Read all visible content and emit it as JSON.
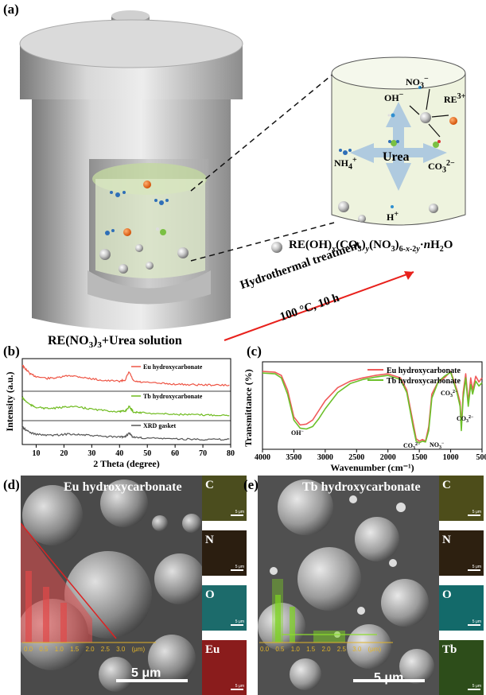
{
  "panel_labels": {
    "a": "(a)",
    "b": "(b)",
    "c": "(c)",
    "d": "(d)",
    "e": "(e)"
  },
  "panel_a": {
    "left_caption_parts": [
      "RE(NO",
      "3",
      ")",
      "3",
      "+Urea solution"
    ],
    "arrow_label_1": "Hydrothermal treatment",
    "arrow_label_2": "100 °C, 10 h",
    "product_formula": "RE(OH)x(CO3)y(NO3)6-x-2y·nH2O",
    "center_label": "Urea",
    "ions": {
      "no3": "NO3−",
      "oh": "OH−",
      "re": "RE3+",
      "nh4": "NH4+",
      "co3": "CO32−",
      "h": "H+"
    },
    "colors": {
      "arrow": "#e8211c",
      "re_ion": "#e86a10",
      "cylinder_fill": "#eef3de"
    }
  },
  "chart_data": [
    {
      "type": "line",
      "panel": "b",
      "xlabel": "2 Theta (degree)",
      "ylabel": "Intensity (a.u.)",
      "xlim": [
        5,
        80
      ],
      "xticks": [
        "10",
        "20",
        "30",
        "40",
        "50",
        "60",
        "70",
        "80"
      ],
      "series": [
        {
          "name": "Eu hydroxycarbonate",
          "color": "#ee5545",
          "x": [
            5,
            6,
            8,
            10,
            14,
            18,
            22,
            26,
            30,
            35,
            40,
            42,
            43.5,
            45,
            48,
            55,
            60,
            65,
            70,
            75,
            80
          ],
          "y": [
            1.0,
            0.85,
            0.6,
            0.5,
            0.42,
            0.45,
            0.55,
            0.48,
            0.4,
            0.32,
            0.3,
            0.35,
            0.7,
            0.3,
            0.25,
            0.2,
            0.17,
            0.15,
            0.14,
            0.13,
            0.12
          ]
        },
        {
          "name": "Tb hydroxycarbonate",
          "color": "#6fbb1f",
          "x": [
            5,
            6,
            8,
            10,
            14,
            18,
            22,
            26,
            30,
            35,
            40,
            42,
            43.5,
            45,
            48,
            55,
            60,
            65,
            70,
            75,
            80
          ],
          "y": [
            1.0,
            0.85,
            0.62,
            0.52,
            0.45,
            0.48,
            0.56,
            0.5,
            0.42,
            0.34,
            0.3,
            0.32,
            0.55,
            0.28,
            0.24,
            0.19,
            0.16,
            0.14,
            0.13,
            0.12,
            0.12
          ]
        },
        {
          "name": "XRD gasket",
          "color": "#555555",
          "x": [
            5,
            6,
            8,
            10,
            14,
            18,
            22,
            26,
            30,
            35,
            40,
            42,
            43.5,
            45,
            48,
            55,
            60,
            65,
            70,
            75,
            80
          ],
          "y": [
            1.0,
            0.82,
            0.6,
            0.5,
            0.42,
            0.45,
            0.52,
            0.46,
            0.4,
            0.33,
            0.3,
            0.33,
            0.55,
            0.28,
            0.24,
            0.2,
            0.17,
            0.15,
            0.14,
            0.13,
            0.12
          ]
        }
      ]
    },
    {
      "type": "line",
      "panel": "c",
      "xlabel": "Wavenumber (cm⁻¹)",
      "ylabel": "Transmittance (%)",
      "xlim": [
        4000,
        500
      ],
      "xticks": [
        "4000",
        "3500",
        "3000",
        "2500",
        "2000",
        "1500",
        "1000",
        "500"
      ],
      "series": [
        {
          "name": "Eu hydroxycarbonate",
          "color": "#f05a5a",
          "x": [
            4000,
            3800,
            3700,
            3600,
            3500,
            3400,
            3300,
            3200,
            3100,
            3000,
            2800,
            2600,
            2400,
            2200,
            2000,
            1800,
            1700,
            1600,
            1550,
            1500,
            1450,
            1400,
            1350,
            1300,
            1200,
            1100,
            1000,
            900,
            850,
            830,
            800,
            760,
            720,
            680,
            650,
            600,
            550,
            500
          ],
          "y": [
            0.98,
            0.97,
            0.93,
            0.75,
            0.42,
            0.32,
            0.33,
            0.38,
            0.5,
            0.62,
            0.78,
            0.86,
            0.9,
            0.93,
            0.95,
            0.9,
            0.75,
            0.35,
            0.15,
            0.12,
            0.14,
            0.12,
            0.3,
            0.7,
            0.85,
            0.9,
            0.98,
            0.75,
            0.6,
            0.3,
            0.72,
            0.95,
            0.6,
            0.9,
            0.75,
            0.92,
            0.85,
            0.9
          ]
        },
        {
          "name": "Tb hydroxycarbonate",
          "color": "#6cc02a",
          "x": [
            4000,
            3800,
            3700,
            3600,
            3500,
            3400,
            3300,
            3200,
            3100,
            3000,
            2800,
            2600,
            2400,
            2200,
            2000,
            1800,
            1700,
            1600,
            1550,
            1500,
            1450,
            1400,
            1350,
            1300,
            1200,
            1100,
            1000,
            900,
            850,
            830,
            800,
            760,
            720,
            680,
            650,
            600,
            550,
            500
          ],
          "y": [
            0.96,
            0.95,
            0.9,
            0.7,
            0.38,
            0.28,
            0.27,
            0.3,
            0.4,
            0.52,
            0.72,
            0.83,
            0.88,
            0.91,
            0.93,
            0.88,
            0.72,
            0.3,
            0.12,
            0.1,
            0.12,
            0.11,
            0.25,
            0.65,
            0.85,
            0.92,
            0.97,
            0.72,
            0.55,
            0.25,
            0.65,
            0.9,
            0.55,
            0.82,
            0.7,
            0.86,
            0.8,
            0.84
          ]
        }
      ],
      "annotations": [
        "OH⁻",
        "CO₃²⁻",
        "NO₃⁻",
        "CO₃²⁻",
        "CO₃²⁻"
      ]
    }
  ],
  "panel_d": {
    "title": "Eu hydroxycarbonate",
    "scale": "5 μm",
    "axis_ticks": [
      "0.0",
      "0.5",
      "1.0",
      "1.5",
      "2.0",
      "2.5",
      "3.0",
      "(μm)"
    ],
    "maps": [
      {
        "el": "C",
        "color": "#4b4d1e",
        "sb": "5 μm"
      },
      {
        "el": "N",
        "color": "#2b1e10",
        "sb": "5 μm"
      },
      {
        "el": "O",
        "color": "#1c6b6b",
        "sb": "5 μm"
      },
      {
        "el": "Eu",
        "color": "#8a1c1c",
        "sb": "5 μm"
      }
    ]
  },
  "panel_e": {
    "title": "Tb hydroxycarbonate",
    "scale": "5 μm",
    "axis_ticks": [
      "0.0",
      "0.5",
      "1.0",
      "1.5",
      "2.0",
      "2.5",
      "3.0",
      "(μm)"
    ],
    "maps": [
      {
        "el": "C",
        "color": "#4d4d1a",
        "sb": "5 μm"
      },
      {
        "el": "N",
        "color": "#2d2010",
        "sb": "5 μm"
      },
      {
        "el": "O",
        "color": "#136a6a",
        "sb": "5 μm"
      },
      {
        "el": "Tb",
        "color": "#2d4d1a",
        "sb": "5 μm"
      }
    ]
  }
}
